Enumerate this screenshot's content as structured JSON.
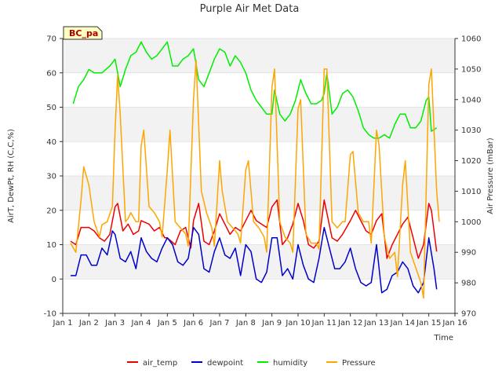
{
  "chart_data": {
    "type": "line",
    "title": "Purple Air Met Data",
    "site_label": "BC_pa",
    "xlabel": "Time",
    "ylabel_left": "AirT, DewPt, RH (C,C,%)",
    "ylabel_right": "Air Pressure (mBar)",
    "xlim": [
      1,
      16
    ],
    "ylim_left": [
      -10,
      70
    ],
    "ylim_right": [
      970,
      1060
    ],
    "x_ticks": [
      {
        "value": 1,
        "label": "Jan 1"
      },
      {
        "value": 2,
        "label": "Jan 2"
      },
      {
        "value": 3,
        "label": "Jan 3"
      },
      {
        "value": 4,
        "label": "Jan 4"
      },
      {
        "value": 5,
        "label": "Jan 5"
      },
      {
        "value": 6,
        "label": "Jan 6"
      },
      {
        "value": 7,
        "label": "Jan 7"
      },
      {
        "value": 8,
        "label": "Jan 8"
      },
      {
        "value": 9,
        "label": "Jan 9"
      },
      {
        "value": 10,
        "label": "Jan 10"
      },
      {
        "value": 11,
        "label": "Jan 11"
      },
      {
        "value": 12,
        "label": "Jan 12"
      },
      {
        "value": 13,
        "label": "Jan 13"
      },
      {
        "value": 14,
        "label": "Jan 14"
      },
      {
        "value": 15,
        "label": "Jan 15"
      },
      {
        "value": 16,
        "label": "Jan 16"
      }
    ],
    "y_ticks_left": [
      {
        "value": -10,
        "label": "-10"
      },
      {
        "value": 0,
        "label": "0"
      },
      {
        "value": 10,
        "label": "10"
      },
      {
        "value": 20,
        "label": "20"
      },
      {
        "value": 30,
        "label": "30"
      },
      {
        "value": 40,
        "label": "40"
      },
      {
        "value": 50,
        "label": "50"
      },
      {
        "value": 60,
        "label": "60"
      },
      {
        "value": 70,
        "label": "70"
      }
    ],
    "y_ticks_right": [
      {
        "value": 970,
        "label": "970"
      },
      {
        "value": 980,
        "label": "980"
      },
      {
        "value": 990,
        "label": "990"
      },
      {
        "value": 1000,
        "label": "1000"
      },
      {
        "value": 1010,
        "label": "1010"
      },
      {
        "value": 1020,
        "label": "1020"
      },
      {
        "value": 1030,
        "label": "1030"
      },
      {
        "value": 1040,
        "label": "1040"
      },
      {
        "value": 1050,
        "label": "1050"
      },
      {
        "value": 1060,
        "label": "1060"
      }
    ],
    "grid": true,
    "background_bands": true,
    "legend_position": "bottom",
    "series": [
      {
        "name": "air_temp",
        "axis": "left",
        "color": "#ee0000",
        "x": [
          1.3,
          1.5,
          1.7,
          2.0,
          2.2,
          2.4,
          2.6,
          2.8,
          3.0,
          3.1,
          3.3,
          3.5,
          3.7,
          3.9,
          4.0,
          4.3,
          4.5,
          4.7,
          4.9,
          5.0,
          5.3,
          5.5,
          5.7,
          5.9,
          6.0,
          6.2,
          6.4,
          6.6,
          6.8,
          7.0,
          7.2,
          7.4,
          7.6,
          7.8,
          8.0,
          8.2,
          8.4,
          8.6,
          8.8,
          9.0,
          9.2,
          9.4,
          9.6,
          9.8,
          10.0,
          10.2,
          10.4,
          10.6,
          10.8,
          11.0,
          11.3,
          11.5,
          11.7,
          12.0,
          12.2,
          12.4,
          12.6,
          12.8,
          13.0,
          13.2,
          13.4,
          13.6,
          13.8,
          14.0,
          14.2,
          14.4,
          14.6,
          14.8,
          15.0,
          15.1,
          15.3
        ],
        "y": [
          11,
          10,
          15,
          15,
          14,
          12,
          11,
          13,
          21,
          22,
          14,
          16,
          13,
          14,
          17,
          16,
          14,
          15,
          12,
          12,
          10,
          14,
          15,
          9,
          17,
          22,
          11,
          10,
          14,
          19,
          16,
          13,
          15,
          14,
          17,
          20,
          17,
          16,
          15,
          21,
          23,
          10,
          12,
          16,
          22,
          17,
          10,
          9,
          11,
          23,
          12,
          11,
          13,
          17,
          20,
          17,
          14,
          13,
          17,
          19,
          6,
          10,
          13,
          16,
          18,
          12,
          6,
          10,
          22,
          20,
          8
        ]
      },
      {
        "name": "dewpoint",
        "axis": "left",
        "color": "#0000cc",
        "x": [
          1.3,
          1.5,
          1.7,
          1.9,
          2.1,
          2.3,
          2.5,
          2.7,
          2.9,
          3.0,
          3.2,
          3.4,
          3.6,
          3.8,
          4.0,
          4.2,
          4.4,
          4.6,
          4.8,
          5.0,
          5.2,
          5.4,
          5.6,
          5.8,
          6.0,
          6.2,
          6.4,
          6.6,
          6.8,
          7.0,
          7.2,
          7.4,
          7.6,
          7.8,
          8.0,
          8.2,
          8.4,
          8.6,
          8.8,
          9.0,
          9.2,
          9.4,
          9.6,
          9.8,
          10.0,
          10.2,
          10.4,
          10.6,
          10.8,
          11.0,
          11.2,
          11.4,
          11.6,
          11.8,
          12.0,
          12.2,
          12.4,
          12.6,
          12.8,
          13.0,
          13.2,
          13.4,
          13.6,
          13.8,
          14.0,
          14.2,
          14.4,
          14.6,
          14.8,
          15.0,
          15.2,
          15.3
        ],
        "y": [
          1,
          1,
          7,
          7,
          4,
          4,
          9,
          7,
          14,
          13,
          6,
          5,
          8,
          3,
          12,
          8,
          6,
          5,
          9,
          12,
          10,
          5,
          4,
          6,
          15,
          13,
          3,
          2,
          8,
          12,
          7,
          6,
          9,
          1,
          10,
          8,
          0,
          -1,
          2,
          12,
          12,
          1,
          3,
          0,
          10,
          4,
          0,
          -1,
          6,
          15,
          9,
          3,
          3,
          5,
          9,
          3,
          -1,
          -2,
          -1,
          10,
          -4,
          -3,
          1,
          2,
          5,
          3,
          -2,
          -4,
          -1,
          12,
          3,
          -3
        ]
      },
      {
        "name": "humidity",
        "axis": "left",
        "color": "#00ee00",
        "x": [
          1.4,
          1.6,
          1.8,
          2.0,
          2.2,
          2.5,
          2.8,
          3.0,
          3.2,
          3.4,
          3.6,
          3.8,
          4.0,
          4.2,
          4.4,
          4.6,
          4.8,
          5.0,
          5.2,
          5.4,
          5.6,
          5.8,
          6.0,
          6.2,
          6.4,
          6.6,
          6.8,
          7.0,
          7.2,
          7.4,
          7.6,
          7.8,
          8.0,
          8.2,
          8.4,
          8.6,
          8.8,
          9.0,
          9.1,
          9.3,
          9.5,
          9.7,
          9.9,
          10.1,
          10.3,
          10.5,
          10.7,
          10.9,
          11.0,
          11.1,
          11.3,
          11.5,
          11.7,
          11.9,
          12.1,
          12.3,
          12.5,
          12.7,
          12.9,
          13.1,
          13.3,
          13.5,
          13.7,
          13.9,
          14.1,
          14.3,
          14.5,
          14.7,
          14.9,
          15.0,
          15.1,
          15.3
        ],
        "y": [
          51,
          56,
          58,
          61,
          60,
          60,
          62,
          64,
          56,
          61,
          65,
          66,
          69,
          66,
          64,
          65,
          67,
          69,
          62,
          62,
          64,
          65,
          67,
          58,
          56,
          60,
          64,
          67,
          66,
          62,
          65,
          63,
          60,
          55,
          52,
          50,
          48,
          48,
          55,
          48,
          46,
          48,
          52,
          58,
          54,
          51,
          51,
          52,
          54,
          60,
          48,
          50,
          54,
          55,
          53,
          49,
          44,
          42,
          41,
          41,
          42,
          41,
          45,
          48,
          48,
          44,
          44,
          46,
          52,
          53,
          43,
          44
        ]
      },
      {
        "name": "Pressure",
        "axis": "right",
        "color": "#ffa500",
        "x": [
          1.3,
          1.5,
          1.7,
          1.8,
          2.0,
          2.2,
          2.4,
          2.5,
          2.7,
          2.9,
          3.0,
          3.1,
          3.2,
          3.4,
          3.5,
          3.6,
          3.8,
          3.9,
          4.0,
          4.1,
          4.3,
          4.5,
          4.7,
          4.8,
          5.0,
          5.1,
          5.3,
          5.5,
          5.7,
          5.8,
          6.0,
          6.1,
          6.3,
          6.5,
          6.7,
          6.8,
          7.0,
          7.1,
          7.3,
          7.5,
          7.7,
          7.8,
          8.0,
          8.1,
          8.3,
          8.5,
          8.7,
          8.8,
          9.0,
          9.1,
          9.3,
          9.5,
          9.7,
          9.8,
          10.0,
          10.1,
          10.3,
          10.5,
          10.7,
          10.8,
          11.0,
          11.1,
          11.3,
          11.5,
          11.7,
          11.8,
          12.0,
          12.1,
          12.3,
          12.5,
          12.7,
          12.8,
          13.0,
          13.1,
          13.3,
          13.5,
          13.7,
          13.8,
          14.0,
          14.1,
          14.3,
          14.5,
          14.7,
          14.8,
          15.0,
          15.1,
          15.3,
          15.4
        ],
        "y": [
          993,
          990,
          1007,
          1018,
          1012,
          1000,
          995,
          999,
          1000,
          1005,
          1030,
          1048,
          1035,
          1000,
          1001,
          1003,
          1000,
          1000,
          1025,
          1030,
          1005,
          1003,
          1000,
          995,
          1017,
          1030,
          1000,
          998,
          996,
          992,
          1040,
          1053,
          1010,
          1003,
          998,
          992,
          1020,
          1010,
          1000,
          998,
          996,
          993,
          1017,
          1020,
          1000,
          998,
          995,
          990,
          1044,
          1050,
          1000,
          995,
          993,
          990,
          1037,
          1040,
          996,
          993,
          993,
          991,
          1050,
          1050,
          1000,
          998,
          1000,
          1000,
          1022,
          1023,
          1003,
          1000,
          1000,
          993,
          1030,
          1025,
          995,
          988,
          990,
          982,
          1012,
          1020,
          990,
          985,
          980,
          975,
          1045,
          1050,
          1010,
          1000
        ]
      }
    ]
  }
}
